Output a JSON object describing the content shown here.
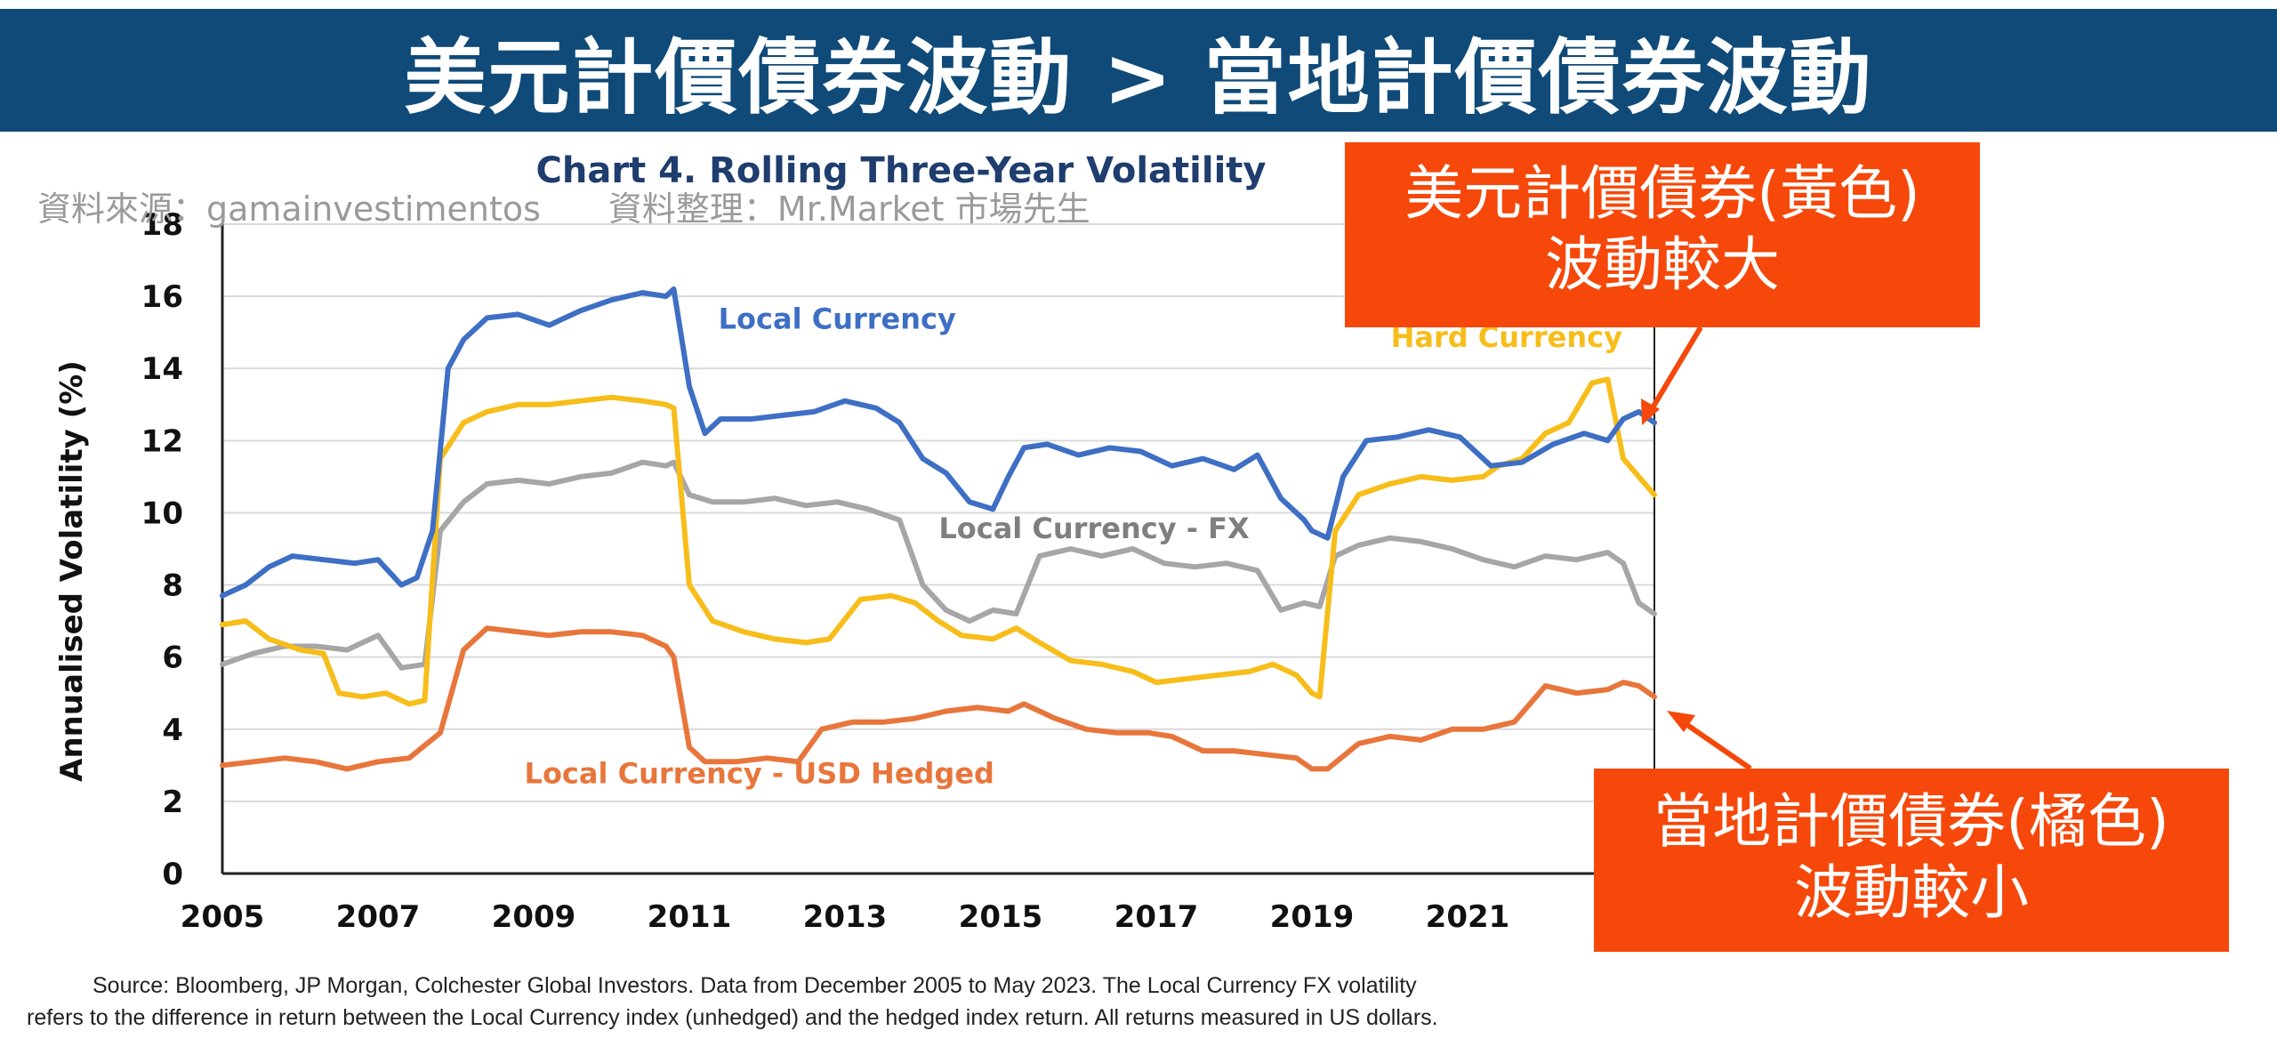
{
  "banner": {
    "title": "美元計價債券波動 > 當地計價債券波動"
  },
  "source": {
    "data_source": "資料來源：gamainvestimentos",
    "organizer": "資料整理：Mr.Market 市場先生"
  },
  "callouts": {
    "hard": {
      "line1": "美元計價債券(黃色)",
      "line2": "波動較大"
    },
    "local": {
      "line1": "當地計價債券(橘色)",
      "line2": "波動較小"
    }
  },
  "footnote": {
    "line1": "Source: Bloomberg, JP Morgan, Colchester Global Investors. Data from December 2005 to May 2023. The Local Currency FX volatility",
    "line2": "refers to the difference in return between the Local Currency index (unhedged) and the hedged index return. All returns measured in US dollars."
  },
  "colors": {
    "banner": "#0f4a78",
    "callout": "#f5480a",
    "local": "#3e6fc4",
    "hard": "#f7bd1a",
    "fx": "#a6a6a6",
    "hedged": "#e8763c",
    "title": "#1f3d6e"
  },
  "chart_data": {
    "type": "line",
    "title": "Chart 4. Rolling Three-Year Volatility",
    "xlabel": "",
    "ylabel": "Annualised Volatility (%)",
    "xlim": [
      2005,
      2023.4
    ],
    "ylim": [
      0,
      18
    ],
    "yticks": [
      0,
      2,
      4,
      6,
      8,
      10,
      12,
      14,
      16,
      18
    ],
    "xticks": [
      2005,
      2007,
      2009,
      2011,
      2013,
      2015,
      2017,
      2019,
      2021
    ],
    "series": [
      {
        "name": "Local Currency",
        "color": "#3e6fc4",
        "label_at": [
          2012.9,
          15.1
        ],
        "x": [
          2005.0,
          2005.3,
          2005.6,
          2005.9,
          2006.3,
          2006.7,
          2007.0,
          2007.3,
          2007.5,
          2007.7,
          2007.9,
          2008.1,
          2008.4,
          2008.8,
          2009.2,
          2009.6,
          2010.0,
          2010.4,
          2010.7,
          2010.8,
          2011.0,
          2011.2,
          2011.4,
          2011.8,
          2012.2,
          2012.6,
          2013.0,
          2013.4,
          2013.7,
          2014.0,
          2014.3,
          2014.6,
          2014.9,
          2015.1,
          2015.3,
          2015.6,
          2016.0,
          2016.4,
          2016.8,
          2017.2,
          2017.6,
          2018.0,
          2018.3,
          2018.6,
          2018.9,
          2019.0,
          2019.2,
          2019.4,
          2019.7,
          2020.1,
          2020.5,
          2020.9,
          2021.3,
          2021.7,
          2022.1,
          2022.5,
          2022.8,
          2023.0,
          2023.2,
          2023.4
        ],
        "y": [
          7.7,
          8.0,
          8.5,
          8.8,
          8.7,
          8.6,
          8.7,
          8.0,
          8.2,
          9.5,
          14.0,
          14.8,
          15.4,
          15.5,
          15.2,
          15.6,
          15.9,
          16.1,
          16.0,
          16.2,
          13.5,
          12.2,
          12.6,
          12.6,
          12.7,
          12.8,
          13.1,
          12.9,
          12.5,
          11.5,
          11.1,
          10.3,
          10.1,
          11.0,
          11.8,
          11.9,
          11.6,
          11.8,
          11.7,
          11.3,
          11.5,
          11.2,
          11.6,
          10.4,
          9.8,
          9.5,
          9.3,
          11.0,
          12.0,
          12.1,
          12.3,
          12.1,
          11.3,
          11.4,
          11.9,
          12.2,
          12.0,
          12.6,
          12.8,
          12.5
        ]
      },
      {
        "name": "Hard Currency",
        "color": "#f7bd1a",
        "label_at": [
          2021.5,
          14.6
        ],
        "x": [
          2005.0,
          2005.3,
          2005.6,
          2006.0,
          2006.3,
          2006.5,
          2006.8,
          2007.1,
          2007.4,
          2007.6,
          2007.8,
          2008.1,
          2008.4,
          2008.8,
          2009.2,
          2009.6,
          2010.0,
          2010.4,
          2010.7,
          2010.8,
          2011.0,
          2011.3,
          2011.7,
          2012.1,
          2012.5,
          2012.8,
          2013.2,
          2013.6,
          2013.9,
          2014.2,
          2014.5,
          2014.9,
          2015.2,
          2015.5,
          2015.9,
          2016.3,
          2016.7,
          2017.0,
          2017.4,
          2017.8,
          2018.2,
          2018.5,
          2018.8,
          2019.0,
          2019.1,
          2019.3,
          2019.6,
          2020.0,
          2020.4,
          2020.8,
          2021.2,
          2021.4,
          2021.7,
          2022.0,
          2022.3,
          2022.6,
          2022.8,
          2023.0,
          2023.2,
          2023.4
        ],
        "y": [
          6.9,
          7.0,
          6.5,
          6.2,
          6.1,
          5.0,
          4.9,
          5.0,
          4.7,
          4.8,
          11.5,
          12.5,
          12.8,
          13.0,
          13.0,
          13.1,
          13.2,
          13.1,
          13.0,
          12.9,
          8.0,
          7.0,
          6.7,
          6.5,
          6.4,
          6.5,
          7.6,
          7.7,
          7.5,
          7.0,
          6.6,
          6.5,
          6.8,
          6.4,
          5.9,
          5.8,
          5.6,
          5.3,
          5.4,
          5.5,
          5.6,
          5.8,
          5.5,
          5.0,
          4.9,
          9.5,
          10.5,
          10.8,
          11.0,
          10.9,
          11.0,
          11.3,
          11.5,
          12.2,
          12.5,
          13.6,
          13.7,
          11.5,
          11.0,
          10.5
        ]
      },
      {
        "name": "Local Currency - FX",
        "color": "#a6a6a6",
        "label_at": [
          2016.2,
          9.3
        ],
        "x": [
          2005.0,
          2005.4,
          2005.8,
          2006.2,
          2006.6,
          2007.0,
          2007.3,
          2007.6,
          2007.8,
          2008.1,
          2008.4,
          2008.8,
          2009.2,
          2009.6,
          2010.0,
          2010.4,
          2010.7,
          2010.8,
          2011.0,
          2011.3,
          2011.7,
          2012.1,
          2012.5,
          2012.9,
          2013.3,
          2013.7,
          2014.0,
          2014.3,
          2014.6,
          2014.9,
          2015.2,
          2015.5,
          2015.9,
          2016.3,
          2016.7,
          2017.1,
          2017.5,
          2017.9,
          2018.3,
          2018.6,
          2018.9,
          2019.1,
          2019.3,
          2019.6,
          2020.0,
          2020.4,
          2020.8,
          2021.2,
          2021.6,
          2022.0,
          2022.4,
          2022.8,
          2023.0,
          2023.2,
          2023.4
        ],
        "y": [
          5.8,
          6.1,
          6.3,
          6.3,
          6.2,
          6.6,
          5.7,
          5.8,
          9.5,
          10.3,
          10.8,
          10.9,
          10.8,
          11.0,
          11.1,
          11.4,
          11.3,
          11.4,
          10.5,
          10.3,
          10.3,
          10.4,
          10.2,
          10.3,
          10.1,
          9.8,
          8.0,
          7.3,
          7.0,
          7.3,
          7.2,
          8.8,
          9.0,
          8.8,
          9.0,
          8.6,
          8.5,
          8.6,
          8.4,
          7.3,
          7.5,
          7.4,
          8.8,
          9.1,
          9.3,
          9.2,
          9.0,
          8.7,
          8.5,
          8.8,
          8.7,
          8.9,
          8.6,
          7.5,
          7.2
        ]
      },
      {
        "name": "Local Currency - USD Hedged",
        "color": "#e8763c",
        "label_at": [
          2011.9,
          2.5
        ],
        "x": [
          2005.0,
          2005.4,
          2005.8,
          2006.2,
          2006.6,
          2007.0,
          2007.4,
          2007.8,
          2008.1,
          2008.4,
          2008.8,
          2009.2,
          2009.6,
          2010.0,
          2010.4,
          2010.7,
          2010.8,
          2011.0,
          2011.2,
          2011.6,
          2012.0,
          2012.4,
          2012.7,
          2013.1,
          2013.5,
          2013.9,
          2014.3,
          2014.7,
          2015.1,
          2015.3,
          2015.7,
          2016.1,
          2016.5,
          2016.9,
          2017.2,
          2017.6,
          2018.0,
          2018.4,
          2018.8,
          2019.0,
          2019.2,
          2019.6,
          2020.0,
          2020.4,
          2020.8,
          2021.2,
          2021.6,
          2022.0,
          2022.4,
          2022.8,
          2023.0,
          2023.2,
          2023.4
        ],
        "y": [
          3.0,
          3.1,
          3.2,
          3.1,
          2.9,
          3.1,
          3.2,
          3.9,
          6.2,
          6.8,
          6.7,
          6.6,
          6.7,
          6.7,
          6.6,
          6.3,
          6.0,
          3.5,
          3.1,
          3.1,
          3.2,
          3.1,
          4.0,
          4.2,
          4.2,
          4.3,
          4.5,
          4.6,
          4.5,
          4.7,
          4.3,
          4.0,
          3.9,
          3.9,
          3.8,
          3.4,
          3.4,
          3.3,
          3.2,
          2.9,
          2.9,
          3.6,
          3.8,
          3.7,
          4.0,
          4.0,
          4.2,
          5.2,
          5.0,
          5.1,
          5.3,
          5.2,
          4.9
        ]
      }
    ]
  }
}
